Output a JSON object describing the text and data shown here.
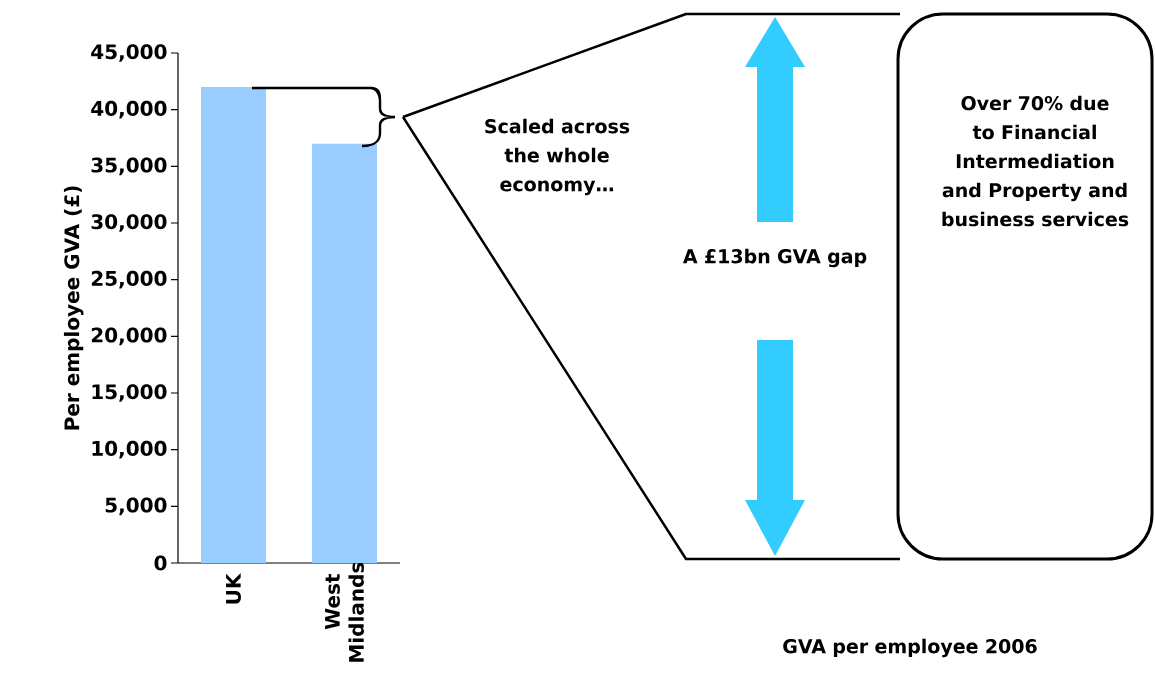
{
  "chart_data": {
    "type": "bar",
    "categories": [
      "UK",
      "West Midlands"
    ],
    "values": [
      42000,
      37000
    ],
    "color": "#99ccff",
    "ylabel": "Per employee GVA (£)",
    "ylim": [
      0,
      45000
    ],
    "yticks": [
      {
        "value": 0,
        "label": "0"
      },
      {
        "value": 5000,
        "label": "5,000"
      },
      {
        "value": 10000,
        "label": "10,000"
      },
      {
        "value": 15000,
        "label": "15,000"
      },
      {
        "value": 20000,
        "label": "20,000"
      },
      {
        "value": 25000,
        "label": "25,000"
      },
      {
        "value": 30000,
        "label": "30,000"
      },
      {
        "value": 35000,
        "label": "35,000"
      },
      {
        "value": 40000,
        "label": "40,000"
      },
      {
        "value": 45000,
        "label": "45,000"
      }
    ],
    "grid": false,
    "annotations": [
      "Scaled across the whole economy…",
      "A £13bn GVA gap",
      "Over 70% due to Financial Intermediation and Property and business services",
      "GVA per employee 2006"
    ]
  }
}
